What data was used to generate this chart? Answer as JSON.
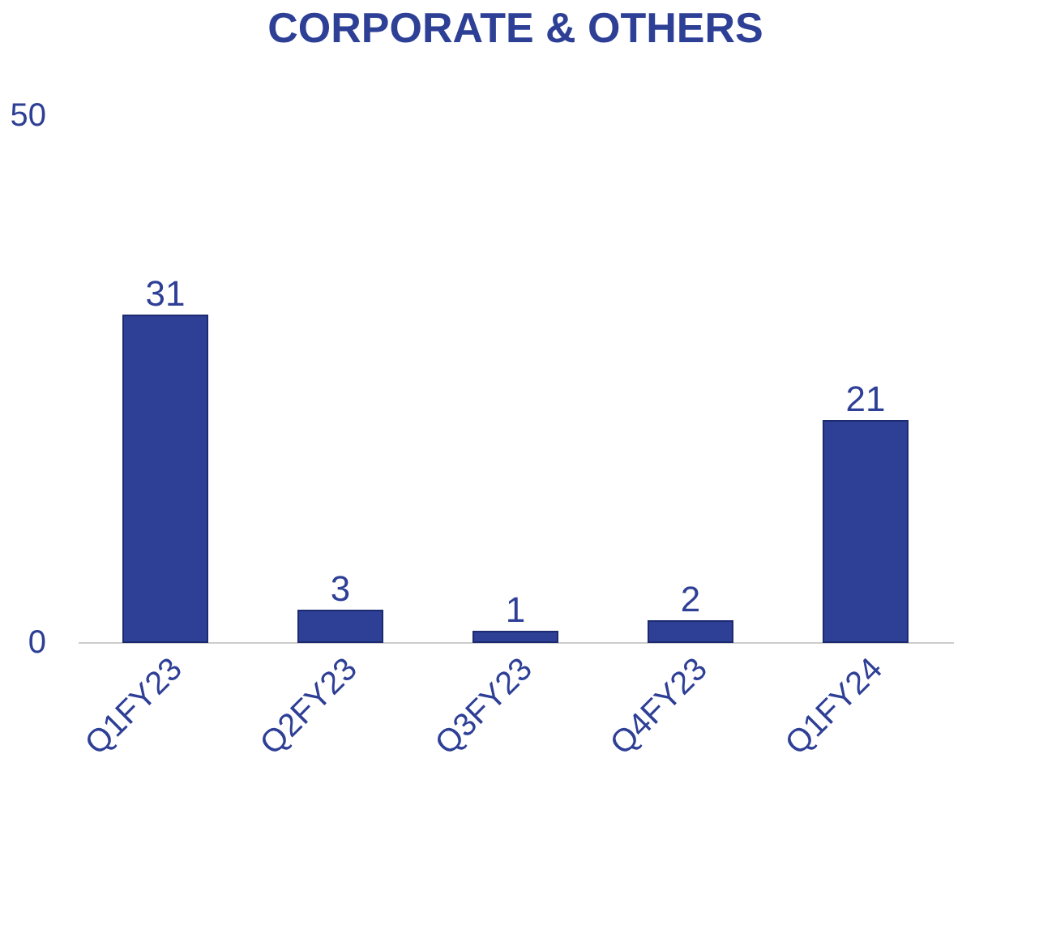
{
  "chart_data": {
    "type": "bar",
    "title": "CORPORATE & OTHERS",
    "categories": [
      "Q1FY23",
      "Q2FY23",
      "Q3FY23",
      "Q4FY23",
      "Q1FY24"
    ],
    "values": [
      31,
      3,
      1,
      2,
      21
    ],
    "color": "#2e3f96",
    "ylim": [
      0,
      50
    ],
    "yticks": [
      0,
      50
    ],
    "data_labels": true,
    "grid": false
  }
}
